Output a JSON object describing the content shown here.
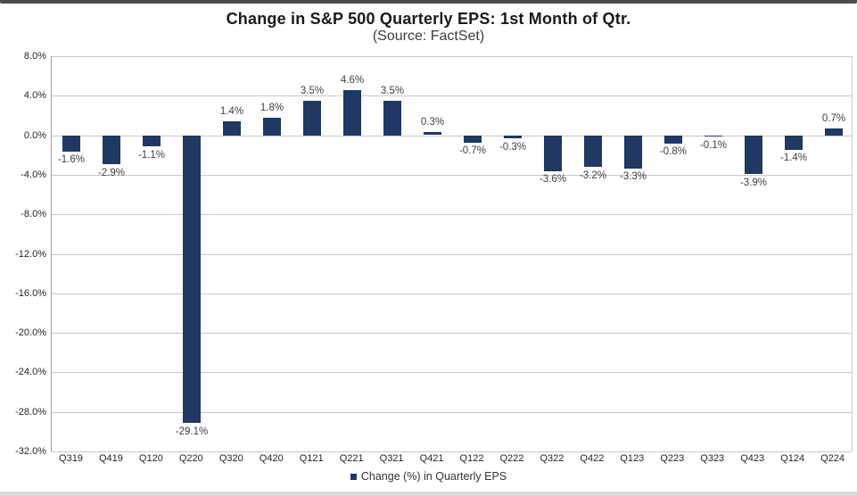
{
  "title": "Change in S&P 500 Quarterly EPS: 1st Month of Qtr.",
  "subtitle": "(Source: FactSet)",
  "colors": {
    "bar": "#1f3864",
    "gridline": "#c8c8c8",
    "axis_text": "#262626",
    "data_label_text": "#404040",
    "top_border": "#4d4d4d",
    "bottom_border": "#d9d9d9"
  },
  "legend": {
    "marker_icon": "square-icon",
    "label": "Change (%) in Quarterly EPS"
  },
  "chart_data": {
    "type": "bar",
    "title": "Change in S&P 500 Quarterly EPS: 1st Month of Qtr.",
    "subtitle": "(Source: FactSet)",
    "categories": [
      "Q319",
      "Q419",
      "Q120",
      "Q220",
      "Q320",
      "Q420",
      "Q121",
      "Q221",
      "Q321",
      "Q421",
      "Q122",
      "Q222",
      "Q322",
      "Q422",
      "Q123",
      "Q223",
      "Q323",
      "Q423",
      "Q124",
      "Q224"
    ],
    "values": [
      -1.6,
      -2.9,
      -1.1,
      -29.1,
      1.4,
      1.8,
      3.5,
      4.6,
      3.5,
      0.3,
      -0.7,
      -0.3,
      -3.6,
      -3.2,
      -3.3,
      -0.8,
      -0.1,
      -3.9,
      -1.4,
      0.7
    ],
    "data_labels": [
      "-1.6%",
      "-2.9%",
      "-1.1%",
      "-29.1%",
      "1.4%",
      "1.8%",
      "3.5%",
      "4.6%",
      "3.5%",
      "0.3%",
      "-0.7%",
      "-0.3%",
      "-3.6%",
      "-3.2%",
      "-3.3%",
      "-0.8%",
      "-0.1%",
      "-3.9%",
      "-1.4%",
      "0.7%"
    ],
    "xlabel": "",
    "ylabel": "",
    "ylim": [
      -32,
      8
    ],
    "ytick_step": 4,
    "ytick_labels": [
      "8.0%",
      "4.0%",
      "0.0%",
      "-4.0%",
      "-8.0%",
      "-12.0%",
      "-16.0%",
      "-20.0%",
      "-24.0%",
      "-28.0%",
      "-32.0%"
    ],
    "grid": true,
    "legend_entries": [
      "Change (%) in Quarterly EPS"
    ],
    "legend_position": "bottom"
  }
}
